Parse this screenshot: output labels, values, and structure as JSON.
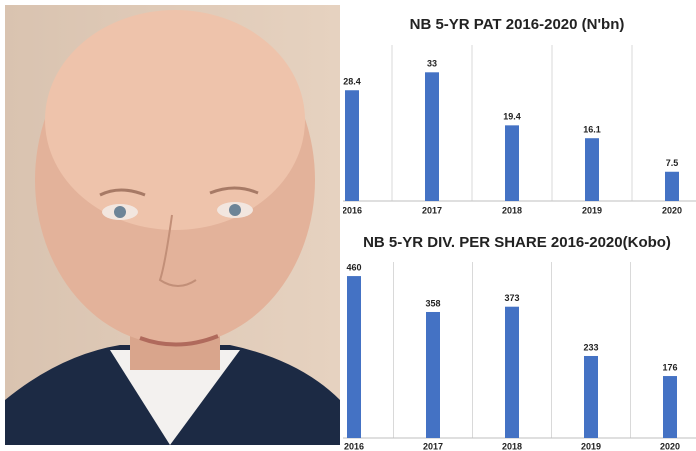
{
  "chart_data": [
    {
      "type": "bar",
      "title": "NB 5-YR PAT 2016-2020 (N'bn)",
      "categories": [
        "2016",
        "2017",
        "2018",
        "2019",
        "2020"
      ],
      "values": [
        28.4,
        33,
        19.4,
        16.1,
        7.5
      ],
      "color": "#4472c4",
      "ylim": [
        0,
        40
      ],
      "grid": true
    },
    {
      "type": "bar",
      "title": "NB 5-YR DIV. PER SHARE 2016-2020(Kobo)",
      "categories": [
        "2016",
        "2017",
        "2018",
        "2019",
        "2020"
      ],
      "values": [
        460,
        358,
        373,
        233,
        176
      ],
      "color": "#4472c4",
      "ylim": [
        0,
        500
      ],
      "grid": true
    }
  ]
}
